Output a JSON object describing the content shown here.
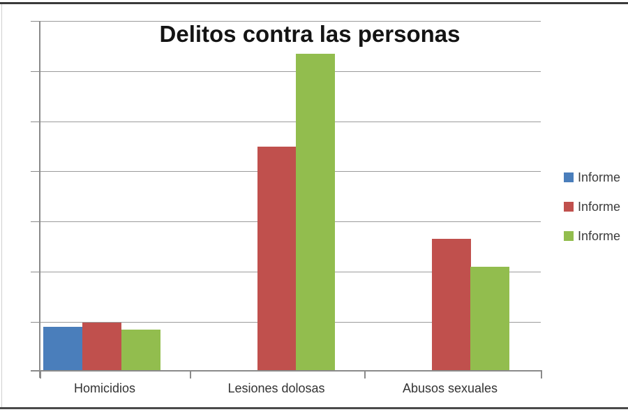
{
  "chart_data": {
    "type": "bar",
    "title": "Delitos contra las personas",
    "categories": [
      "Homicidios",
      "Lesiones dolosas",
      "Abusos sexuales"
    ],
    "series": [
      {
        "name": "Informe",
        "color": "#4a7ebb",
        "values": [
          0.88,
          null,
          null
        ]
      },
      {
        "name": "Informe",
        "color": "#c0504d",
        "values": [
          0.96,
          4.48,
          2.64
        ]
      },
      {
        "name": "Informe",
        "color": "#92bd4e",
        "values": [
          0.82,
          6.34,
          2.08
        ]
      }
    ],
    "xlabel": "",
    "ylabel": "",
    "ylim": [
      0,
      7
    ],
    "value_axis_labels_visible": false,
    "grid": true,
    "gridline_count": 7,
    "legend_position": "right",
    "legend_labels_truncated": true
  },
  "colors": {
    "series_blue": "#4a7ebb",
    "series_red": "#c0504d",
    "series_green": "#92bd4e",
    "gridline": "#9b9b9b",
    "axis": "#8a8a8a",
    "frame": "#3a3a3a",
    "title_text": "#141414",
    "label_text": "#333333"
  }
}
